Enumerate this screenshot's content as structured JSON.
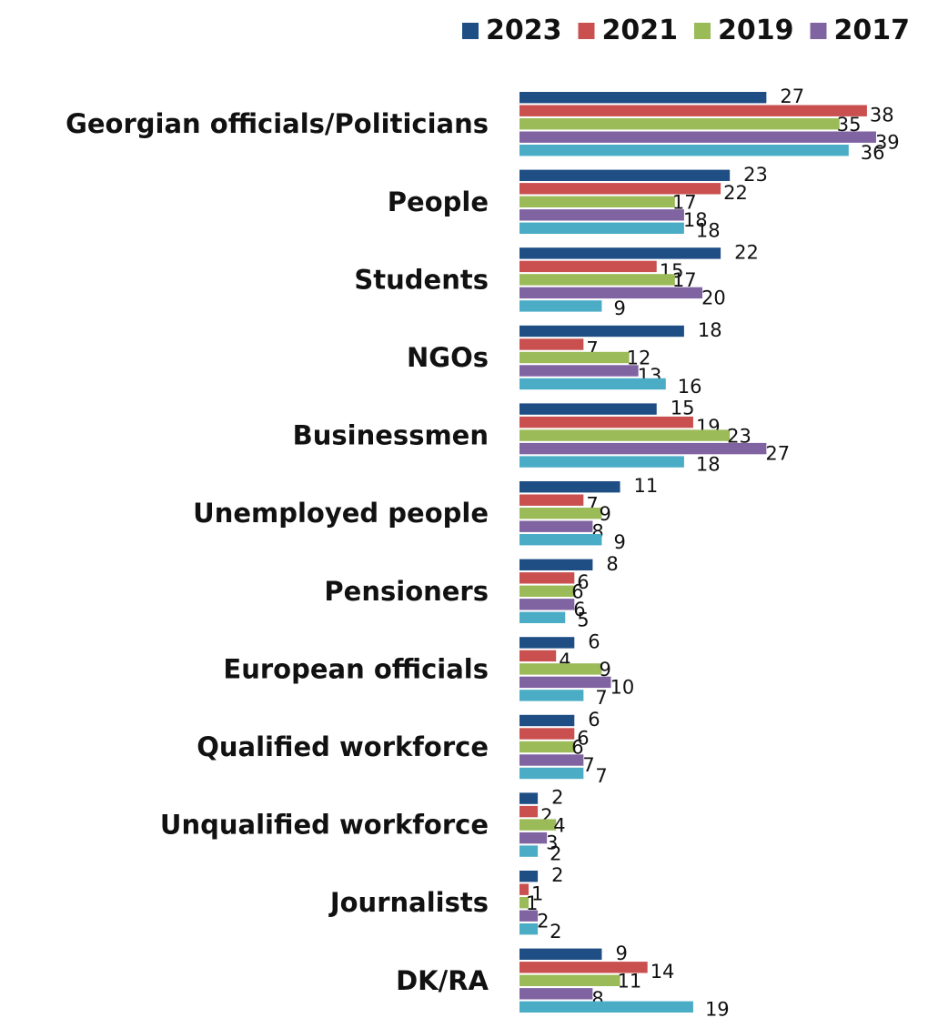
{
  "chart_data": {
    "type": "bar",
    "orientation": "horizontal",
    "legend_position": "top-right",
    "grid": false,
    "categories": [
      "Georgian officials/Politicians",
      "People",
      "Students",
      "NGOs",
      "Businessmen",
      "Unemployed people",
      "Pensioners",
      "European officials",
      "Qualified workforce",
      "Unqualified workforce",
      "Journalists",
      "DK/RA"
    ],
    "series": [
      {
        "name": "2023",
        "color": "#1f4e85",
        "values": [
          27,
          23,
          22,
          18,
          15,
          11,
          8,
          6,
          6,
          2,
          2,
          9
        ]
      },
      {
        "name": "2021",
        "color": "#c9504f",
        "values": [
          38,
          22,
          15,
          7,
          19,
          7,
          6,
          4,
          6,
          2,
          1,
          14
        ]
      },
      {
        "name": "2019",
        "color": "#9bbb59",
        "values": [
          35,
          17,
          17,
          12,
          23,
          9,
          6,
          9,
          6,
          4,
          1,
          11
        ]
      },
      {
        "name": "2017",
        "color": "#8064a2",
        "values": [
          39,
          18,
          20,
          13,
          27,
          8,
          6,
          10,
          7,
          3,
          2,
          8
        ]
      },
      {
        "name": "",
        "color": "#4bacc6",
        "values": [
          36,
          18,
          9,
          16,
          18,
          9,
          5,
          7,
          7,
          2,
          2,
          19
        ]
      }
    ]
  }
}
